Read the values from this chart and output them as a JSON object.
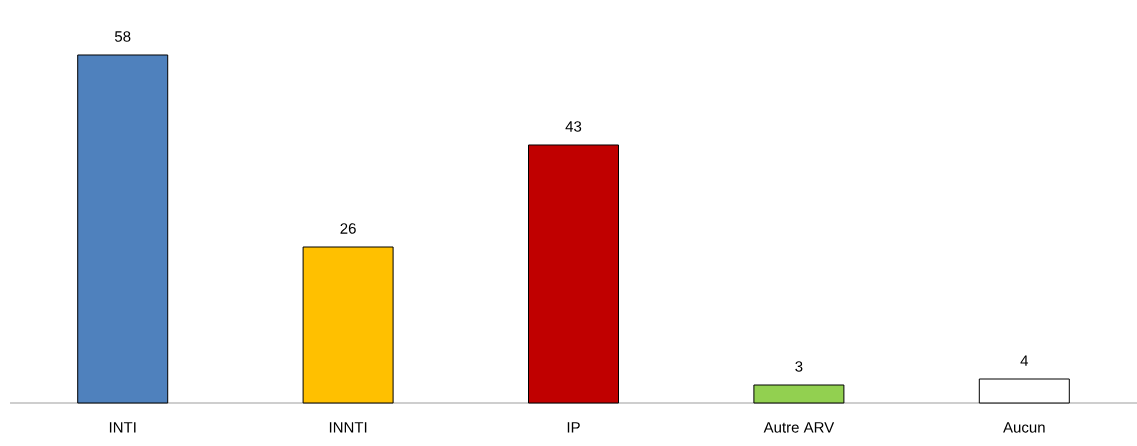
{
  "chart_data": {
    "type": "bar",
    "categories": [
      "INTI",
      "INNTI",
      "IP",
      "Autre ARV",
      "Aucun"
    ],
    "values": [
      58,
      26,
      43,
      3,
      4
    ],
    "colors": [
      "#4f81bd",
      "#ffc000",
      "#c00000",
      "#92d050",
      "#ffffff"
    ],
    "data_labels": true
  }
}
